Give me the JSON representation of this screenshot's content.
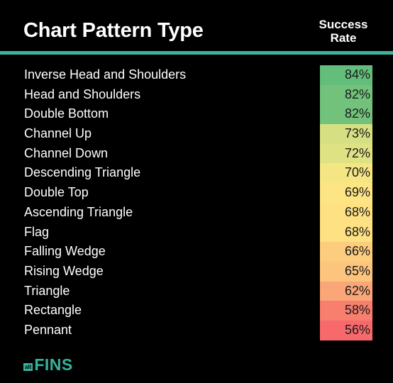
{
  "header": {
    "title": "Chart Pattern Type",
    "rate_line1": "Success",
    "rate_line2": "Rate"
  },
  "rows": [
    {
      "label": "Inverse Head and Shoulders",
      "rate": "84%",
      "color": "#63be7b"
    },
    {
      "label": "Head and Shoulders",
      "rate": "82%",
      "color": "#72c27c"
    },
    {
      "label": "Double Bottom",
      "rate": "82%",
      "color": "#72c27c"
    },
    {
      "label": "Channel Up",
      "rate": "73%",
      "color": "#d6e082"
    },
    {
      "label": "Channel Down",
      "rate": "72%",
      "color": "#dfe283"
    },
    {
      "label": "Descending Triangle",
      "rate": "70%",
      "color": "#f5e684"
    },
    {
      "label": "Double Top",
      "rate": "69%",
      "color": "#fee583"
    },
    {
      "label": "Ascending Triangle",
      "rate": "68%",
      "color": "#fee182"
    },
    {
      "label": "Flag",
      "rate": "68%",
      "color": "#fee182"
    },
    {
      "label": "Falling Wedge",
      "rate": "66%",
      "color": "#fdcd7e"
    },
    {
      "label": "Rising Wedge",
      "rate": "65%",
      "color": "#fcc47c"
    },
    {
      "label": "Triangle",
      "rate": "62%",
      "color": "#fba677"
    },
    {
      "label": "Rectangle",
      "rate": "58%",
      "color": "#f87e6e"
    },
    {
      "label": "Pennant",
      "rate": "56%",
      "color": "#f8696b"
    }
  ],
  "logo": {
    "small": "alt",
    "main": "FINS",
    "accent": "#36b39a"
  }
}
